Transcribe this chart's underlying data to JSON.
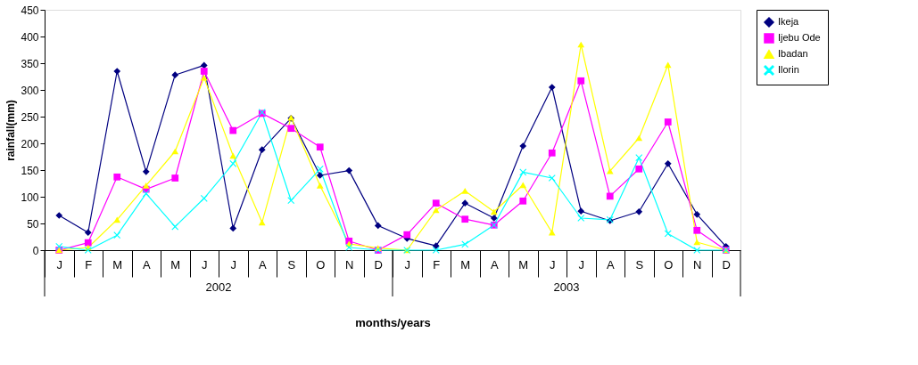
{
  "chart_data": {
    "type": "line",
    "xlabel": "months/years",
    "ylabel": "rainfall(mm)",
    "categories": [
      "J",
      "F",
      "M",
      "A",
      "M",
      "J",
      "J",
      "A",
      "S",
      "O",
      "N",
      "D",
      "J",
      "F",
      "M",
      "A",
      "M",
      "J",
      "J",
      "A",
      "S",
      "O",
      "N",
      "D"
    ],
    "series": [
      {
        "name": "Ikeja",
        "color": "#000080",
        "marker": "diamond",
        "values": [
          65,
          33,
          335,
          147,
          328,
          346,
          41,
          188,
          247,
          140,
          149,
          46,
          22,
          8,
          88,
          60,
          195,
          305,
          73,
          55,
          72,
          162,
          67,
          7
        ]
      },
      {
        "name": "Ijebu Ode",
        "color": "#ff00ff",
        "marker": "square",
        "values": [
          0,
          14,
          137,
          114,
          135,
          335,
          224,
          256,
          228,
          193,
          17,
          0,
          29,
          88,
          58,
          47,
          92,
          182,
          317,
          101,
          152,
          240,
          37,
          0
        ]
      },
      {
        "name": "Ibadan",
        "color": "#ffff00",
        "marker": "triangle",
        "values": [
          0,
          5,
          57,
          121,
          185,
          323,
          177,
          52,
          248,
          121,
          12,
          4,
          0,
          75,
          111,
          72,
          122,
          33,
          385,
          148,
          210,
          347,
          15,
          0
        ]
      },
      {
        "name": "Ilorin",
        "color": "#00ffff",
        "marker": "cross",
        "values": [
          7,
          0,
          28,
          106,
          44,
          97,
          162,
          258,
          93,
          152,
          5,
          0,
          0,
          0,
          11,
          47,
          146,
          135,
          60,
          57,
          173,
          31,
          0,
          0
        ]
      }
    ],
    "annotations": [
      "2002",
      "2003"
    ],
    "ylim": [
      0,
      450
    ],
    "yticks": [
      0,
      50,
      100,
      150,
      200,
      250,
      300,
      350,
      400,
      450
    ],
    "grid": false,
    "legend": "right",
    "line_style": "solid"
  }
}
